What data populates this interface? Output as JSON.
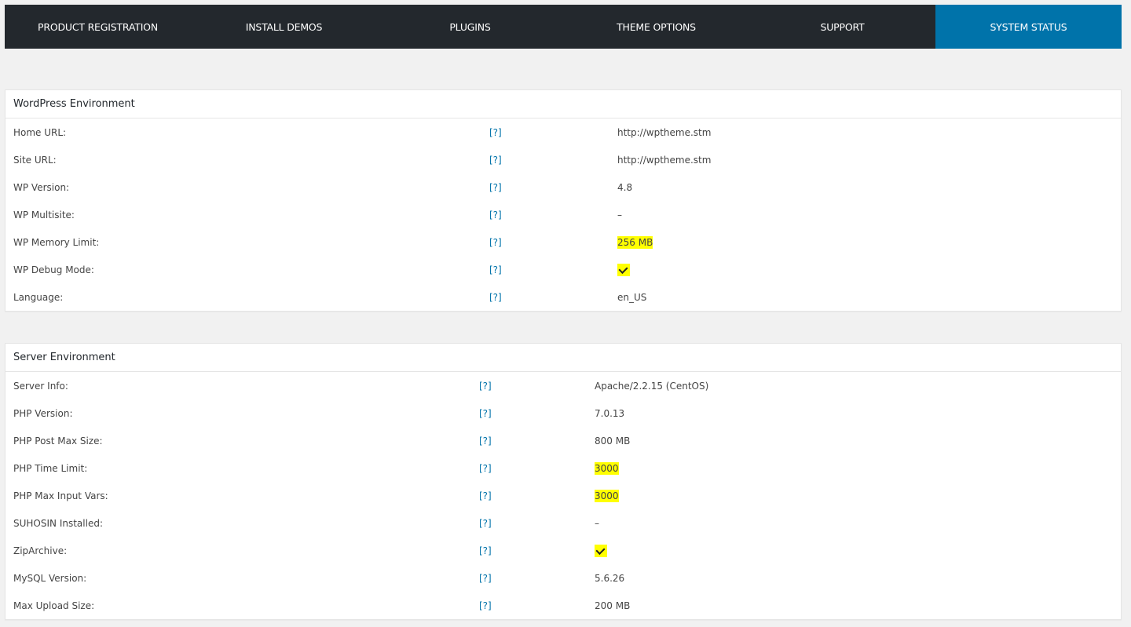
{
  "nav": {
    "items": [
      "PRODUCT REGISTRATION",
      "INSTALL DEMOS",
      "PLUGINS",
      "THEME OPTIONS",
      "SUPPORT",
      "SYSTEM STATUS"
    ],
    "active": "SYSTEM STATUS"
  },
  "help_label": "[?]",
  "highlight_color": "#ffff00",
  "sections": [
    {
      "title": "WordPress Environment",
      "rows": [
        {
          "label": "Home URL:",
          "value": "http://wptheme.stm"
        },
        {
          "label": "Site URL:",
          "value": "http://wptheme.stm"
        },
        {
          "label": "WP Version:",
          "value": "4.8"
        },
        {
          "label": "WP Multisite:",
          "value": "–"
        },
        {
          "label": "WP Memory Limit:",
          "value": "256 MB",
          "highlight": true
        },
        {
          "label": "WP Debug Mode:",
          "value": "",
          "icon": "check-icon",
          "highlight": true
        },
        {
          "label": "Language:",
          "value": "en_US"
        }
      ]
    },
    {
      "title": "Server Environment",
      "rows": [
        {
          "label": "Server Info:",
          "value": "Apache/2.2.15 (CentOS)"
        },
        {
          "label": "PHP Version:",
          "value": "7.0.13"
        },
        {
          "label": "PHP Post Max Size:",
          "value": "800 MB"
        },
        {
          "label": "PHP Time Limit:",
          "value": "3000",
          "highlight": true
        },
        {
          "label": "PHP Max Input Vars:",
          "value": "3000",
          "highlight": true
        },
        {
          "label": "SUHOSIN Installed:",
          "value": "–"
        },
        {
          "label": "ZipArchive:",
          "value": "",
          "icon": "check-icon",
          "highlight": true
        },
        {
          "label": "MySQL Version:",
          "value": "5.6.26"
        },
        {
          "label": "Max Upload Size:",
          "value": "200 MB"
        }
      ]
    }
  ]
}
